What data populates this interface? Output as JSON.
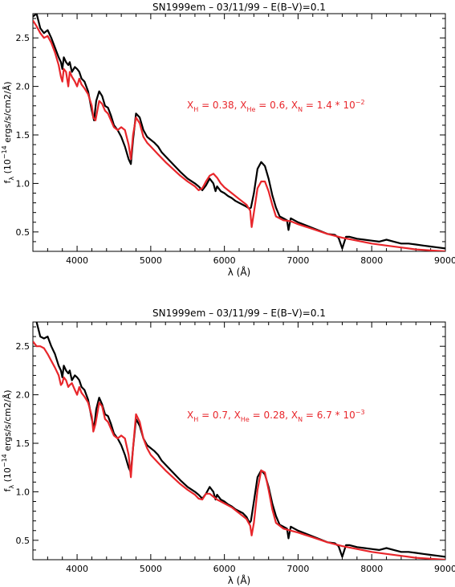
{
  "chart_data": [
    {
      "type": "line",
      "title": "SN1999em – 03/11/99 – E(B–V)=0.1",
      "xlabel": "λ (Å)",
      "ylabel_main": "f",
      "ylabel_sub": "λ",
      "ylabel_rest": " (10",
      "ylabel_exp": "−14",
      "ylabel_tail": " ergs/s/cm2/Å)",
      "xlim": [
        3400,
        9000
      ],
      "ylim": [
        0.3,
        2.75
      ],
      "xticks": [
        4000,
        5000,
        6000,
        7000,
        8000,
        9000
      ],
      "yticks": [
        0.5,
        1.0,
        1.5,
        2.0,
        2.5
      ],
      "ytick_labels": [
        "0.5",
        "1.0",
        "1.5",
        "2.0",
        "2.5"
      ],
      "annotation": {
        "color": "#e8262b",
        "parts": [
          {
            "t": "X",
            "s": "base"
          },
          {
            "t": "H",
            "s": "sub"
          },
          {
            "t": " = 0.38, X",
            "s": "base"
          },
          {
            "t": "He",
            "s": "sub"
          },
          {
            "t": " = 0.6, X",
            "s": "base"
          },
          {
            "t": "N",
            "s": "sub"
          },
          {
            "t": " = 1.4 * 10",
            "s": "base"
          },
          {
            "t": "−2",
            "s": "sup"
          }
        ]
      },
      "series": [
        {
          "color": "#000000",
          "x": [
            3400,
            3450,
            3500,
            3550,
            3600,
            3650,
            3700,
            3750,
            3780,
            3800,
            3820,
            3850,
            3880,
            3900,
            3930,
            3970,
            4000,
            4030,
            4060,
            4100,
            4150,
            4200,
            4230,
            4260,
            4300,
            4340,
            4380,
            4420,
            4460,
            4500,
            4550,
            4600,
            4650,
            4700,
            4730,
            4760,
            4800,
            4850,
            4900,
            4950,
            5000,
            5050,
            5100,
            5150,
            5200,
            5300,
            5400,
            5500,
            5600,
            5650,
            5700,
            5750,
            5800,
            5850,
            5880,
            5900,
            5950,
            6000,
            6050,
            6100,
            6150,
            6200,
            6250,
            6300,
            6340,
            6360,
            6400,
            6450,
            6500,
            6550,
            6600,
            6650,
            6700,
            6750,
            6800,
            6850,
            6870,
            6900,
            6950,
            7000,
            7100,
            7200,
            7300,
            7400,
            7500,
            7550,
            7600,
            7650,
            7700,
            7800,
            7900,
            8000,
            8100,
            8200,
            8300,
            8400,
            8500,
            8600,
            8700,
            8800,
            8900,
            9000
          ],
          "y": [
            2.72,
            2.75,
            2.6,
            2.55,
            2.58,
            2.5,
            2.4,
            2.3,
            2.25,
            2.18,
            2.3,
            2.25,
            2.22,
            2.25,
            2.15,
            2.2,
            2.18,
            2.15,
            2.08,
            2.05,
            1.95,
            1.75,
            1.65,
            1.85,
            1.95,
            1.9,
            1.8,
            1.78,
            1.7,
            1.6,
            1.55,
            1.48,
            1.38,
            1.25,
            1.2,
            1.45,
            1.72,
            1.68,
            1.55,
            1.48,
            1.45,
            1.42,
            1.38,
            1.32,
            1.28,
            1.2,
            1.12,
            1.05,
            1.0,
            0.97,
            0.93,
            0.98,
            1.05,
            1.0,
            0.92,
            0.97,
            0.92,
            0.9,
            0.87,
            0.85,
            0.82,
            0.8,
            0.78,
            0.76,
            0.74,
            0.75,
            0.9,
            1.15,
            1.22,
            1.18,
            1.05,
            0.88,
            0.75,
            0.66,
            0.64,
            0.62,
            0.52,
            0.64,
            0.62,
            0.6,
            0.57,
            0.54,
            0.51,
            0.48,
            0.47,
            0.44,
            0.33,
            0.45,
            0.45,
            0.43,
            0.42,
            0.41,
            0.4,
            0.42,
            0.4,
            0.38,
            0.38,
            0.37,
            0.36,
            0.35,
            0.34,
            0.33
          ]
        },
        {
          "color": "#e8262b",
          "x": [
            3400,
            3450,
            3500,
            3550,
            3600,
            3650,
            3700,
            3750,
            3780,
            3800,
            3820,
            3850,
            3880,
            3900,
            3930,
            3970,
            4000,
            4030,
            4060,
            4100,
            4150,
            4200,
            4220,
            4250,
            4300,
            4340,
            4380,
            4420,
            4460,
            4500,
            4550,
            4600,
            4650,
            4700,
            4730,
            4760,
            4800,
            4850,
            4900,
            4950,
            5000,
            5100,
            5200,
            5300,
            5400,
            5500,
            5600,
            5650,
            5700,
            5750,
            5800,
            5850,
            5900,
            5950,
            6000,
            6100,
            6200,
            6300,
            6350,
            6370,
            6400,
            6450,
            6500,
            6550,
            6600,
            6650,
            6700,
            6800,
            6900,
            7000,
            7200,
            7400,
            7600,
            7800,
            8000,
            8200,
            8400,
            8600,
            8800,
            9000
          ],
          "y": [
            2.68,
            2.62,
            2.55,
            2.5,
            2.52,
            2.45,
            2.35,
            2.22,
            2.1,
            2.05,
            2.18,
            2.15,
            2.0,
            2.15,
            2.1,
            2.05,
            2.0,
            2.08,
            2.02,
            1.98,
            1.92,
            1.8,
            1.68,
            1.65,
            1.85,
            1.82,
            1.75,
            1.72,
            1.65,
            1.58,
            1.55,
            1.58,
            1.55,
            1.4,
            1.25,
            1.5,
            1.68,
            1.62,
            1.48,
            1.42,
            1.38,
            1.3,
            1.22,
            1.15,
            1.08,
            1.02,
            0.97,
            0.93,
            0.95,
            1.02,
            1.08,
            1.1,
            1.06,
            1.0,
            0.96,
            0.9,
            0.84,
            0.78,
            0.72,
            0.55,
            0.7,
            0.95,
            1.02,
            1.02,
            0.92,
            0.78,
            0.66,
            0.62,
            0.61,
            0.58,
            0.53,
            0.48,
            0.44,
            0.41,
            0.38,
            0.36,
            0.34,
            0.32,
            0.31,
            0.3
          ]
        }
      ]
    },
    {
      "type": "line",
      "title": "SN1999em – 03/11/99 – E(B–V)=0.1",
      "xlabel": "λ (Å)",
      "ylabel_main": "f",
      "ylabel_sub": "λ",
      "ylabel_rest": " (10",
      "ylabel_exp": "−14",
      "ylabel_tail": " ergs/s/cm2/Å)",
      "xlim": [
        3400,
        9000
      ],
      "ylim": [
        0.3,
        2.75
      ],
      "xticks": [
        4000,
        5000,
        6000,
        7000,
        8000,
        9000
      ],
      "yticks": [
        0.5,
        1.0,
        1.5,
        2.0,
        2.5
      ],
      "ytick_labels": [
        "0.5",
        "1.0",
        "1.5",
        "2.0",
        "2.5"
      ],
      "annotation": {
        "color": "#e8262b",
        "parts": [
          {
            "t": "X",
            "s": "base"
          },
          {
            "t": "H",
            "s": "sub"
          },
          {
            "t": " = 0.7, X",
            "s": "base"
          },
          {
            "t": "He",
            "s": "sub"
          },
          {
            "t": " = 0.28, X",
            "s": "base"
          },
          {
            "t": "N",
            "s": "sub"
          },
          {
            "t": " = 6.7 * 10",
            "s": "base"
          },
          {
            "t": "−3",
            "s": "sup"
          }
        ]
      },
      "series": [
        {
          "color": "#000000",
          "x": [
            3400,
            3450,
            3500,
            3550,
            3600,
            3650,
            3700,
            3750,
            3780,
            3800,
            3820,
            3850,
            3880,
            3900,
            3930,
            3970,
            4000,
            4030,
            4060,
            4100,
            4150,
            4200,
            4230,
            4260,
            4300,
            4340,
            4380,
            4420,
            4460,
            4500,
            4550,
            4600,
            4650,
            4700,
            4730,
            4760,
            4800,
            4850,
            4900,
            4950,
            5000,
            5050,
            5100,
            5150,
            5200,
            5300,
            5400,
            5500,
            5600,
            5650,
            5700,
            5750,
            5800,
            5850,
            5880,
            5900,
            5950,
            6000,
            6050,
            6100,
            6150,
            6200,
            6250,
            6300,
            6340,
            6360,
            6400,
            6450,
            6500,
            6550,
            6600,
            6650,
            6700,
            6750,
            6800,
            6850,
            6870,
            6900,
            6950,
            7000,
            7100,
            7200,
            7300,
            7400,
            7500,
            7550,
            7600,
            7650,
            7700,
            7800,
            7900,
            8000,
            8100,
            8200,
            8300,
            8400,
            8500,
            8600,
            8700,
            8800,
            8900,
            9000
          ],
          "y": [
            2.78,
            2.75,
            2.6,
            2.58,
            2.6,
            2.5,
            2.42,
            2.3,
            2.25,
            2.18,
            2.3,
            2.25,
            2.22,
            2.25,
            2.15,
            2.2,
            2.18,
            2.15,
            2.08,
            2.05,
            1.95,
            1.75,
            1.65,
            1.85,
            1.97,
            1.9,
            1.8,
            1.78,
            1.7,
            1.6,
            1.55,
            1.48,
            1.38,
            1.25,
            1.2,
            1.45,
            1.75,
            1.68,
            1.55,
            1.48,
            1.45,
            1.42,
            1.38,
            1.32,
            1.28,
            1.2,
            1.12,
            1.05,
            1.0,
            0.97,
            0.93,
            0.98,
            1.05,
            1.0,
            0.92,
            0.97,
            0.92,
            0.9,
            0.87,
            0.85,
            0.82,
            0.8,
            0.78,
            0.74,
            0.68,
            0.7,
            0.9,
            1.15,
            1.22,
            1.18,
            1.05,
            0.88,
            0.75,
            0.66,
            0.64,
            0.62,
            0.52,
            0.64,
            0.62,
            0.6,
            0.57,
            0.54,
            0.51,
            0.48,
            0.47,
            0.44,
            0.33,
            0.45,
            0.45,
            0.43,
            0.42,
            0.41,
            0.4,
            0.42,
            0.4,
            0.38,
            0.38,
            0.37,
            0.36,
            0.35,
            0.34,
            0.33
          ]
        },
        {
          "color": "#e8262b",
          "x": [
            3400,
            3450,
            3500,
            3550,
            3600,
            3650,
            3700,
            3750,
            3780,
            3800,
            3820,
            3850,
            3880,
            3900,
            3930,
            3970,
            4000,
            4030,
            4060,
            4100,
            4150,
            4200,
            4220,
            4250,
            4300,
            4340,
            4380,
            4420,
            4460,
            4500,
            4550,
            4600,
            4650,
            4700,
            4730,
            4760,
            4800,
            4850,
            4900,
            4950,
            5000,
            5100,
            5200,
            5300,
            5400,
            5500,
            5600,
            5650,
            5700,
            5750,
            5800,
            5850,
            5900,
            5950,
            6000,
            6100,
            6200,
            6300,
            6350,
            6370,
            6400,
            6450,
            6500,
            6550,
            6600,
            6650,
            6700,
            6800,
            6900,
            7000,
            7200,
            7400,
            7600,
            7800,
            8000,
            8200,
            8400,
            8600,
            8800,
            9000
          ],
          "y": [
            2.55,
            2.5,
            2.5,
            2.48,
            2.42,
            2.35,
            2.28,
            2.2,
            2.1,
            2.12,
            2.18,
            2.15,
            2.08,
            2.1,
            2.12,
            2.05,
            2.0,
            2.08,
            2.02,
            1.98,
            1.92,
            1.78,
            1.62,
            1.7,
            1.92,
            1.88,
            1.75,
            1.72,
            1.65,
            1.58,
            1.55,
            1.58,
            1.55,
            1.38,
            1.15,
            1.45,
            1.8,
            1.72,
            1.55,
            1.45,
            1.38,
            1.3,
            1.22,
            1.15,
            1.08,
            1.02,
            0.97,
            0.93,
            0.92,
            0.98,
            0.98,
            0.95,
            0.92,
            0.9,
            0.88,
            0.84,
            0.78,
            0.72,
            0.65,
            0.55,
            0.68,
            1.02,
            1.22,
            1.2,
            1.02,
            0.82,
            0.68,
            0.62,
            0.6,
            0.58,
            0.53,
            0.48,
            0.44,
            0.41,
            0.38,
            0.36,
            0.34,
            0.32,
            0.31,
            0.3
          ]
        }
      ]
    }
  ]
}
